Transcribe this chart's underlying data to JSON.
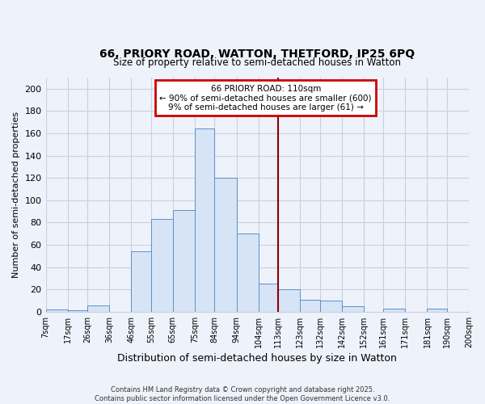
{
  "title": "66, PRIORY ROAD, WATTON, THETFORD, IP25 6PQ",
  "subtitle": "Size of property relative to semi-detached houses in Watton",
  "xlabel": "Distribution of semi-detached houses by size in Watton",
  "ylabel": "Number of semi-detached properties",
  "bin_labels": [
    "7sqm",
    "17sqm",
    "26sqm",
    "36sqm",
    "46sqm",
    "55sqm",
    "65sqm",
    "75sqm",
    "84sqm",
    "94sqm",
    "104sqm",
    "113sqm",
    "123sqm",
    "132sqm",
    "142sqm",
    "152sqm",
    "161sqm",
    "171sqm",
    "181sqm",
    "190sqm",
    "200sqm"
  ],
  "bar_heights": [
    2,
    1,
    6,
    0,
    54,
    83,
    91,
    164,
    120,
    70,
    25,
    20,
    11,
    10,
    5,
    0,
    3,
    0,
    3,
    0
  ],
  "bar_color": "#d6e4f5",
  "bar_edge_color": "#5b8fcc",
  "vline_color": "#8b0000",
  "annotation_title": "66 PRIORY ROAD: 110sqm",
  "annotation_line1": "← 90% of semi-detached houses are smaller (600)",
  "annotation_line2": "9% of semi-detached houses are larger (61) →",
  "annotation_box_color": "white",
  "annotation_box_edge_color": "#cc0000",
  "ylim": [
    0,
    210
  ],
  "yticks": [
    0,
    20,
    40,
    60,
    80,
    100,
    120,
    140,
    160,
    180,
    200
  ],
  "bin_edges": [
    7,
    17,
    26,
    36,
    46,
    55,
    65,
    75,
    84,
    94,
    104,
    113,
    123,
    132,
    142,
    152,
    161,
    171,
    181,
    190,
    200
  ],
  "vline_x": 113,
  "footnote": "Contains HM Land Registry data © Crown copyright and database right 2025.\nContains public sector information licensed under the Open Government Licence v3.0.",
  "background_color": "#eef2fa",
  "grid_color": "#c8d0e0",
  "plot_bg_color": "#eef2fa"
}
